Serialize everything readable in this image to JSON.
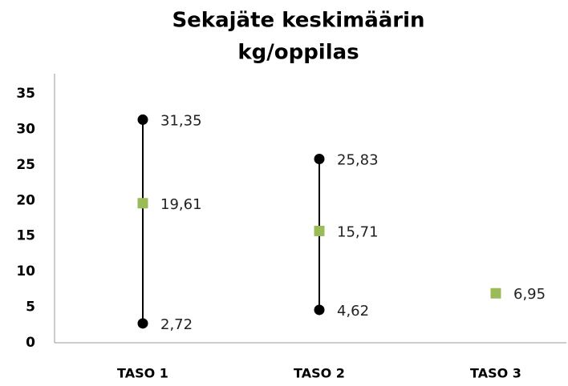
{
  "chart_data": {
    "type": "high-low",
    "title": [
      "Sekajäte keskimäärin",
      "kg/oppilas"
    ],
    "categories": [
      "TASO 1",
      "TASO 2",
      "TASO 3"
    ],
    "series": [
      {
        "color": "#000000",
        "marker": "circle",
        "values": [
          31.35,
          25.83,
          null
        ],
        "value_labels": [
          "31,35",
          "25,83",
          null
        ]
      },
      {
        "color": "#000000",
        "marker": "circle",
        "values": [
          2.72,
          4.62,
          null
        ],
        "value_labels": [
          "2,72",
          "4,62",
          null
        ]
      },
      {
        "color": "#9bbb59",
        "marker": "square",
        "values": [
          19.61,
          15.71,
          6.95
        ],
        "value_labels": [
          "19,61",
          "15,71",
          "6,95"
        ]
      }
    ],
    "ylim": [
      0,
      35
    ],
    "yticks": [
      0,
      5,
      10,
      15,
      20,
      25,
      30,
      35
    ],
    "grid": false
  }
}
